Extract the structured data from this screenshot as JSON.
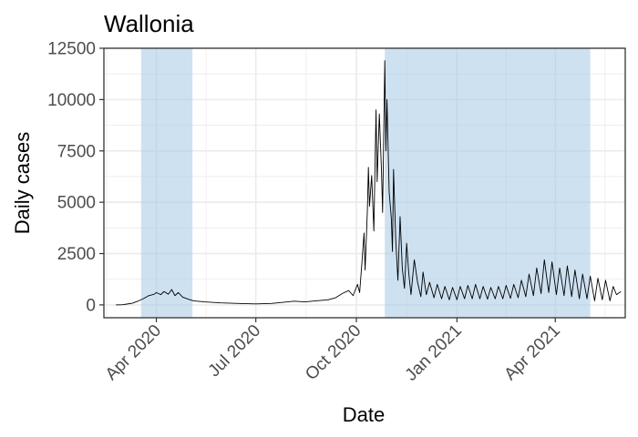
{
  "chart_data": {
    "type": "line",
    "title": "Wallonia",
    "xlabel": "Date",
    "ylabel": "Daily cases",
    "x_range": [
      "2020-02-13",
      "2021-06-04"
    ],
    "ylim": [
      -625,
      12500
    ],
    "y_ticks": [
      0,
      2500,
      5000,
      7500,
      10000,
      12500
    ],
    "y_tick_labels": [
      "0",
      "2500",
      "5000",
      "7500",
      "10000",
      "12500"
    ],
    "x_ticks": [
      "2020-04-01",
      "2020-07-01",
      "2020-10-01",
      "2021-01-01",
      "2021-04-01"
    ],
    "x_tick_labels": [
      "Apr 2020",
      "Jul 2020",
      "Oct 2020",
      "Jan 2021",
      "Apr 2021"
    ],
    "grid": true,
    "colors": {
      "line": "#000000",
      "shade": "#c5daef",
      "panel_border": "#333333",
      "grid": "#ebebeb"
    },
    "shaded_periods": [
      {
        "start": "2020-03-18",
        "end": "2020-05-04"
      },
      {
        "start": "2020-10-27",
        "end": "2021-05-03"
      }
    ],
    "series": [
      {
        "points": [
          [
            "2020-02-24",
            0
          ],
          [
            "2020-03-01",
            10
          ],
          [
            "2020-03-05",
            40
          ],
          [
            "2020-03-10",
            80
          ],
          [
            "2020-03-15",
            180
          ],
          [
            "2020-03-20",
            300
          ],
          [
            "2020-03-25",
            450
          ],
          [
            "2020-03-30",
            520
          ],
          [
            "2020-04-01",
            600
          ],
          [
            "2020-04-05",
            500
          ],
          [
            "2020-04-08",
            650
          ],
          [
            "2020-04-12",
            520
          ],
          [
            "2020-04-15",
            750
          ],
          [
            "2020-04-18",
            450
          ],
          [
            "2020-04-21",
            600
          ],
          [
            "2020-04-25",
            380
          ],
          [
            "2020-04-30",
            280
          ],
          [
            "2020-05-05",
            200
          ],
          [
            "2020-05-15",
            150
          ],
          [
            "2020-05-30",
            100
          ],
          [
            "2020-06-15",
            70
          ],
          [
            "2020-07-01",
            50
          ],
          [
            "2020-07-15",
            70
          ],
          [
            "2020-07-25",
            120
          ],
          [
            "2020-08-05",
            180
          ],
          [
            "2020-08-15",
            150
          ],
          [
            "2020-08-25",
            200
          ],
          [
            "2020-09-05",
            250
          ],
          [
            "2020-09-12",
            350
          ],
          [
            "2020-09-18",
            550
          ],
          [
            "2020-09-24",
            700
          ],
          [
            "2020-09-28",
            450
          ],
          [
            "2020-10-02",
            1000
          ],
          [
            "2020-10-04",
            600
          ],
          [
            "2020-10-06",
            2000
          ],
          [
            "2020-10-08",
            3500
          ],
          [
            "2020-10-09",
            1700
          ],
          [
            "2020-10-11",
            4500
          ],
          [
            "2020-10-12",
            6700
          ],
          [
            "2020-10-13",
            4800
          ],
          [
            "2020-10-15",
            6300
          ],
          [
            "2020-10-17",
            3600
          ],
          [
            "2020-10-19",
            9500
          ],
          [
            "2020-10-20",
            6000
          ],
          [
            "2020-10-22",
            9300
          ],
          [
            "2020-10-24",
            6500
          ],
          [
            "2020-10-25",
            4500
          ],
          [
            "2020-10-27",
            11900
          ],
          [
            "2020-10-28",
            7500
          ],
          [
            "2020-10-29",
            10000
          ],
          [
            "2020-10-31",
            5500
          ],
          [
            "2020-11-02",
            4200
          ],
          [
            "2020-11-03",
            2600
          ],
          [
            "2020-11-04",
            6600
          ],
          [
            "2020-11-06",
            3200
          ],
          [
            "2020-11-08",
            1200
          ],
          [
            "2020-11-10",
            4300
          ],
          [
            "2020-11-12",
            1800
          ],
          [
            "2020-11-14",
            800
          ],
          [
            "2020-11-16",
            3000
          ],
          [
            "2020-11-18",
            1500
          ],
          [
            "2020-11-20",
            500
          ],
          [
            "2020-11-23",
            2200
          ],
          [
            "2020-11-26",
            1100
          ],
          [
            "2020-11-29",
            400
          ],
          [
            "2020-12-01",
            1600
          ],
          [
            "2020-12-04",
            500
          ],
          [
            "2020-12-07",
            1100
          ],
          [
            "2020-12-11",
            350
          ],
          [
            "2020-12-14",
            1000
          ],
          [
            "2020-12-18",
            300
          ],
          [
            "2020-12-21",
            900
          ],
          [
            "2020-12-25",
            250
          ],
          [
            "2020-12-28",
            850
          ],
          [
            "2021-01-01",
            250
          ],
          [
            "2021-01-04",
            900
          ],
          [
            "2021-01-08",
            300
          ],
          [
            "2021-01-11",
            950
          ],
          [
            "2021-01-15",
            300
          ],
          [
            "2021-01-18",
            1000
          ],
          [
            "2021-01-22",
            300
          ],
          [
            "2021-01-25",
            900
          ],
          [
            "2021-01-29",
            280
          ],
          [
            "2021-02-01",
            850
          ],
          [
            "2021-02-05",
            300
          ],
          [
            "2021-02-08",
            900
          ],
          [
            "2021-02-12",
            300
          ],
          [
            "2021-02-15",
            950
          ],
          [
            "2021-02-19",
            320
          ],
          [
            "2021-02-22",
            1000
          ],
          [
            "2021-02-26",
            350
          ],
          [
            "2021-03-01",
            1200
          ],
          [
            "2021-03-05",
            400
          ],
          [
            "2021-03-08",
            1500
          ],
          [
            "2021-03-12",
            450
          ],
          [
            "2021-03-15",
            1800
          ],
          [
            "2021-03-19",
            550
          ],
          [
            "2021-03-22",
            2200
          ],
          [
            "2021-03-26",
            600
          ],
          [
            "2021-03-29",
            2100
          ],
          [
            "2021-04-02",
            500
          ],
          [
            "2021-04-05",
            1800
          ],
          [
            "2021-04-09",
            450
          ],
          [
            "2021-04-12",
            1900
          ],
          [
            "2021-04-16",
            400
          ],
          [
            "2021-04-19",
            1700
          ],
          [
            "2021-04-23",
            300
          ],
          [
            "2021-04-26",
            1500
          ],
          [
            "2021-04-30",
            300
          ],
          [
            "2021-05-03",
            1400
          ],
          [
            "2021-05-07",
            200
          ],
          [
            "2021-05-10",
            1300
          ],
          [
            "2021-05-14",
            250
          ],
          [
            "2021-05-17",
            1200
          ],
          [
            "2021-05-21",
            200
          ],
          [
            "2021-05-24",
            900
          ],
          [
            "2021-05-27",
            500
          ],
          [
            "2021-05-31",
            650
          ]
        ]
      }
    ]
  }
}
